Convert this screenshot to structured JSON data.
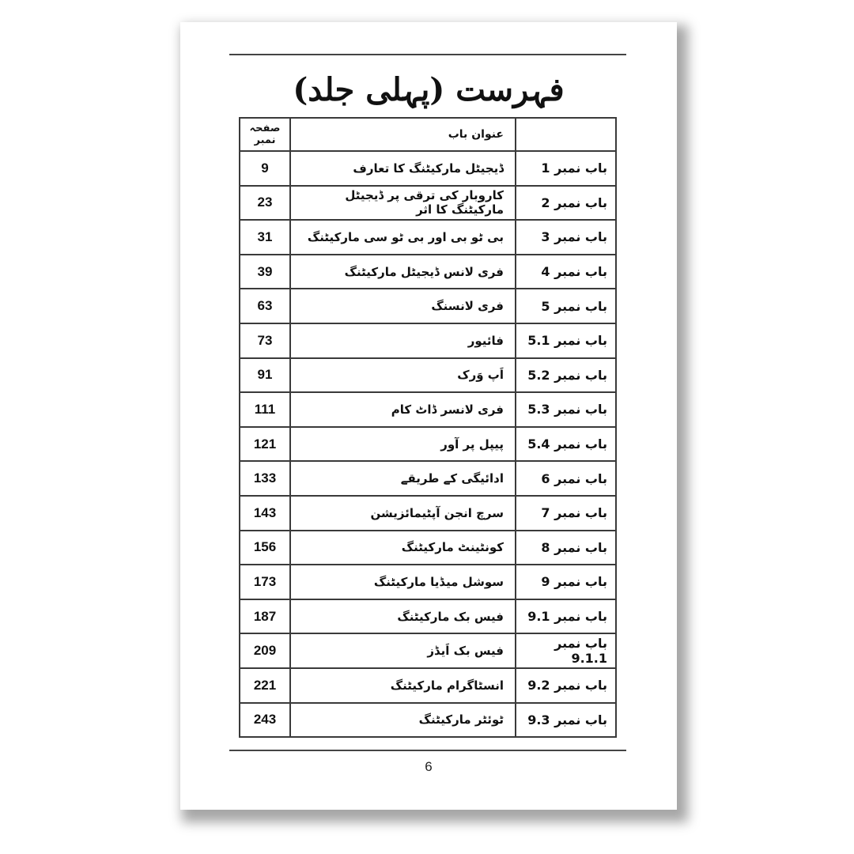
{
  "title": "فہرست (پہلی جلد)",
  "table": {
    "headers": {
      "chapter": "",
      "title": "عنوان باب",
      "page": "صفحہ نمبر"
    },
    "rows": [
      {
        "chapter": "باب نمبر 1",
        "title": "ڈیجیٹل مارکیٹنگ کا تعارف",
        "page": "9"
      },
      {
        "chapter": "باب نمبر 2",
        "title": "کاروبار کی ترقی پر ڈیجیٹل مارکیٹنگ کا اثر",
        "page": "23"
      },
      {
        "chapter": "باب نمبر 3",
        "title": "بی ٹو بی اور بی ٹو سی مارکیٹنگ",
        "page": "31"
      },
      {
        "chapter": "باب نمبر 4",
        "title": "فری لانس ڈیجیٹل مارکیٹنگ",
        "page": "39"
      },
      {
        "chapter": "باب نمبر 5",
        "title": "فری لانسنگ",
        "page": "63"
      },
      {
        "chapter": "باب نمبر 5.1",
        "title": "فائیور",
        "page": "73"
      },
      {
        "chapter": "باب نمبر 5.2",
        "title": "اَپ وَرک",
        "page": "91"
      },
      {
        "chapter": "باب نمبر 5.3",
        "title": "فری لانسر ڈاٹ کام",
        "page": "111"
      },
      {
        "chapter": "باب نمبر 5.4",
        "title": "پیپل پر آور",
        "page": "121"
      },
      {
        "chapter": "باب نمبر 6",
        "title": "ادائیگی کے طریقے",
        "page": "133"
      },
      {
        "chapter": "باب نمبر 7",
        "title": "سرچ انجن آپٹیمائزیشن",
        "page": "143"
      },
      {
        "chapter": "باب نمبر 8",
        "title": "کونٹینٹ مارکیٹنگ",
        "page": "156"
      },
      {
        "chapter": "باب نمبر 9",
        "title": "سوشل میڈیا مارکیٹنگ",
        "page": "173"
      },
      {
        "chapter": "باب نمبر 9.1",
        "title": "فیس بک مارکیٹنگ",
        "page": "187"
      },
      {
        "chapter": "باب نمبر 9.1.1",
        "title": "فیس بک اَیڈز",
        "page": "209"
      },
      {
        "chapter": "باب نمبر 9.2",
        "title": "انسٹاگرام مارکیٹنگ",
        "page": "221"
      },
      {
        "chapter": "باب نمبر 9.3",
        "title": "ٹوئٹر مارکیٹنگ",
        "page": "243"
      }
    ]
  },
  "page_number": "6"
}
